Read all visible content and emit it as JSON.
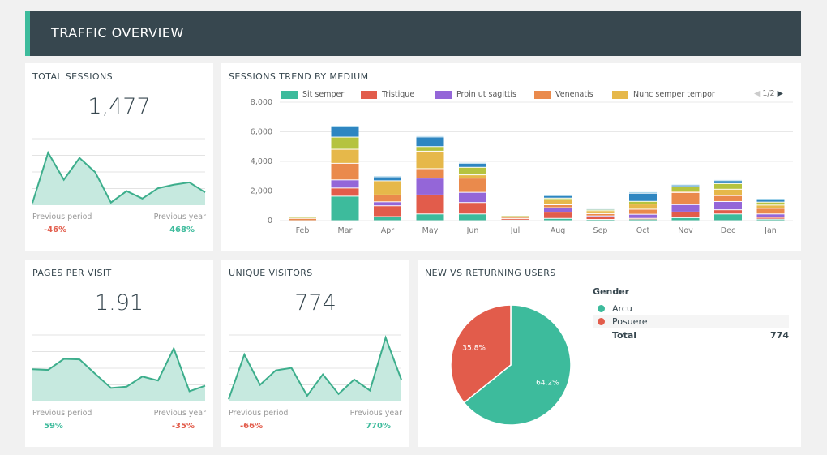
{
  "header": {
    "title": "TRAFFIC OVERVIEW"
  },
  "colors": {
    "accent": "#3dbb9c",
    "header": "#37474f",
    "positive": "#3dbb9c",
    "negative": "#e25c4b"
  },
  "cards": {
    "total_sessions": {
      "title": "TOTAL SESSIONS",
      "value": "1,477",
      "prev_period_label": "Previous period",
      "prev_period": "-46%",
      "prev_year_label": "Previous year",
      "prev_year": "468%",
      "spark": [
        0.13,
        3.16,
        1.53,
        2.84,
        1.98,
        0.16,
        0.85,
        0.4,
        1.02,
        1.23,
        1.37,
        0.77
      ]
    },
    "pages_per_visit": {
      "title": "PAGES PER VISIT",
      "value": "1.91",
      "prev_period_label": "Previous period",
      "prev_period": "59%",
      "prev_year_label": "Previous year",
      "prev_year": "-35%",
      "spark": [
        1.94,
        1.9,
        2.56,
        2.53,
        1.66,
        0.81,
        0.89,
        1.5,
        1.26,
        3.19,
        0.61,
        0.95
      ]
    },
    "unique_visitors": {
      "title": "UNIQUE VISITORS",
      "value": "774",
      "prev_period_label": "Previous period",
      "prev_period": "-66%",
      "prev_year_label": "Previous year",
      "prev_year": "770%",
      "spark": [
        0.13,
        2.82,
        1.0,
        1.87,
        2.02,
        0.34,
        1.63,
        0.45,
        1.32,
        0.66,
        3.84,
        1.31
      ]
    }
  },
  "trend": {
    "title": "SESSIONS TREND BY MEDIUM",
    "pager": "1/2"
  },
  "chart_data": [
    {
      "type": "bar",
      "stacked": true,
      "title": "SESSIONS TREND BY MEDIUM",
      "ylim": [
        0,
        8000
      ],
      "yticks": [
        "0",
        "2,000",
        "4,000",
        "6,000",
        "8,000"
      ],
      "grid": true,
      "legend": "top",
      "categories": [
        "Feb",
        "Mar",
        "Apr",
        "May",
        "Jun",
        "Jul",
        "Aug",
        "Sep",
        "Oct",
        "Nov",
        "Dec",
        "Jan"
      ],
      "series": [
        {
          "name": "Sit semper",
          "color": "#3dbb9c",
          "values": [
            0,
            1650,
            270,
            450,
            450,
            30,
            150,
            80,
            100,
            200,
            450,
            100
          ]
        },
        {
          "name": "Tristique",
          "color": "#e25c4b",
          "values": [
            0,
            550,
            730,
            1280,
            770,
            100,
            420,
            180,
            50,
            380,
            280,
            120
          ]
        },
        {
          "name": "Proin ut sagittis",
          "color": "#9466d8",
          "values": [
            0,
            550,
            270,
            1140,
            690,
            0,
            300,
            60,
            280,
            500,
            560,
            230
          ]
        },
        {
          "name": "Venenatis",
          "color": "#ea8a4c",
          "values": [
            150,
            1120,
            460,
            640,
            960,
            100,
            200,
            150,
            340,
            820,
            400,
            380
          ]
        },
        {
          "name": "Nunc semper tempor",
          "color": "#e6b84a",
          "values": [
            0,
            950,
            960,
            1180,
            220,
            50,
            350,
            200,
            350,
            80,
            430,
            220
          ]
        },
        {
          "color": "#b5c33f",
          "values": [
            80,
            820,
            0,
            310,
            510,
            50,
            100,
            80,
            180,
            320,
            380,
            200
          ]
        },
        {
          "color": "#2e86c1",
          "values": [
            0,
            690,
            270,
            650,
            270,
            0,
            160,
            0,
            550,
            100,
            200,
            150
          ]
        },
        {
          "color": "#8ecae6",
          "values": [
            50,
            90,
            80,
            80,
            60,
            0,
            50,
            50,
            100,
            50,
            70,
            100
          ]
        }
      ]
    },
    {
      "type": "pie",
      "title": "NEW VS RETURNING USERS",
      "legend_title": "Gender",
      "slices": [
        {
          "name": "Arcu",
          "value": 64.2,
          "label": "64.2%",
          "color": "#3dbb9c"
        },
        {
          "name": "Posuere",
          "value": 35.8,
          "label": "35.8%",
          "color": "#e25c4b"
        }
      ],
      "total_label": "Total",
      "total": "774"
    }
  ]
}
